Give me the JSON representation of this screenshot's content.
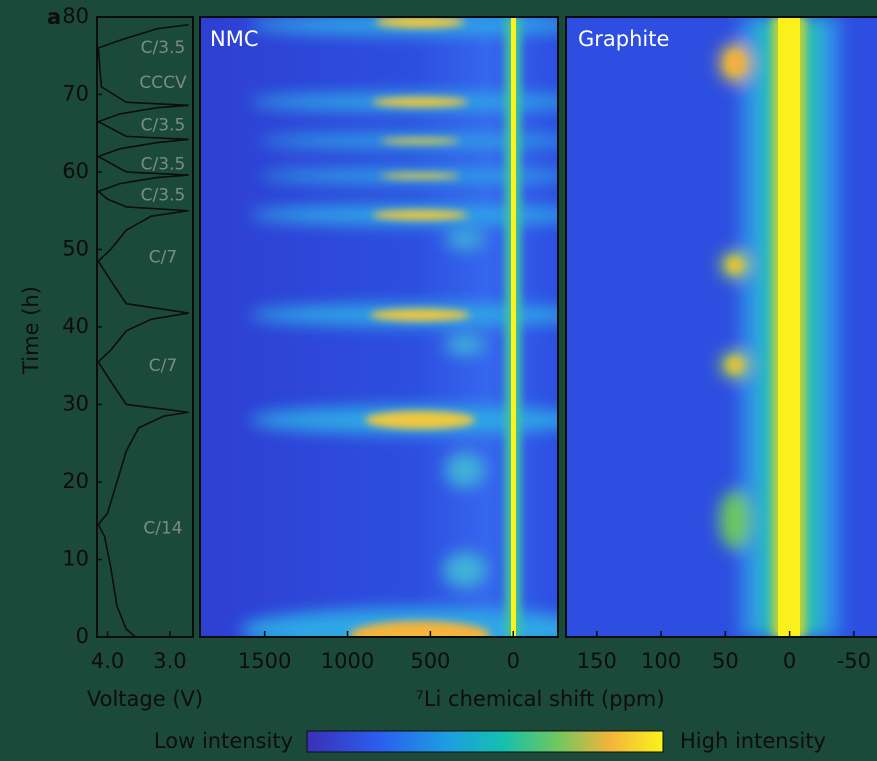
{
  "panel_label": "a",
  "colorbar": {
    "low_label": "Low intensity",
    "high_label": "High intensity"
  },
  "chart_data": [
    {
      "type": "line",
      "xlabel": "Voltage (V)",
      "ylabel": "Time (h)",
      "xlim": [
        4.17,
        2.63
      ],
      "ylim": [
        0,
        80
      ],
      "xticks": [
        {
          "value": 4,
          "label": "4.0"
        },
        {
          "value": 3,
          "label": "3.0"
        }
      ],
      "yticks": [
        0,
        10,
        20,
        30,
        40,
        50,
        60,
        70,
        80
      ],
      "color": "#0d0d0d",
      "x": [
        3.55,
        3.7,
        3.85,
        3.95,
        4.05,
        4.15,
        4.0,
        3.85,
        3.7,
        3.5,
        3.1,
        2.7,
        3.7,
        3.95,
        4.15,
        3.95,
        3.7,
        3.3,
        2.7,
        3.7,
        3.95,
        4.15,
        3.95,
        3.7,
        3.3,
        2.7,
        3.7,
        4.0,
        4.15,
        3.8,
        3.2,
        2.7,
        3.7,
        4.15,
        3.8,
        3.2,
        2.7,
        3.7,
        4.15,
        3.8,
        3.2,
        2.7,
        3.7,
        4.1,
        4.15,
        3.8,
        3.2,
        2.7
      ],
      "y": [
        0,
        1,
        4,
        9,
        13,
        14.5,
        16,
        20,
        24,
        27,
        28.5,
        29,
        30,
        33,
        35.5,
        37,
        39.5,
        41,
        41.8,
        43,
        46,
        48.5,
        50,
        52.5,
        54.3,
        55,
        55.5,
        56.5,
        57.5,
        58.5,
        59.3,
        59.6,
        60,
        62,
        63,
        63.8,
        64.2,
        64.6,
        66.5,
        67.5,
        68.3,
        68.6,
        69,
        71,
        76,
        77,
        78.5,
        79
      ],
      "annotations": [
        {
          "text": "C/14",
          "t": 14
        },
        {
          "text": "C/7",
          "t": 35
        },
        {
          "text": "C/7",
          "t": 49
        },
        {
          "text": "C/3.5",
          "t": 57
        },
        {
          "text": "C/3.5",
          "t": 61
        },
        {
          "text": "C/3.5",
          "t": 66
        },
        {
          "text": "CCCV",
          "t": 71.5
        },
        {
          "text": "C/3.5",
          "t": 76
        }
      ]
    },
    {
      "type": "heatmap",
      "title": "NMC",
      "xlabel": "⁷Li chemical shift (ppm)",
      "xlim": [
        1890,
        -270
      ],
      "xticks": [
        1500,
        1000,
        500,
        0
      ]
    },
    {
      "type": "heatmap",
      "title": "Graphite",
      "xlim": [
        174,
        -68
      ],
      "xticks": [
        150,
        100,
        50,
        0,
        -50
      ]
    }
  ]
}
